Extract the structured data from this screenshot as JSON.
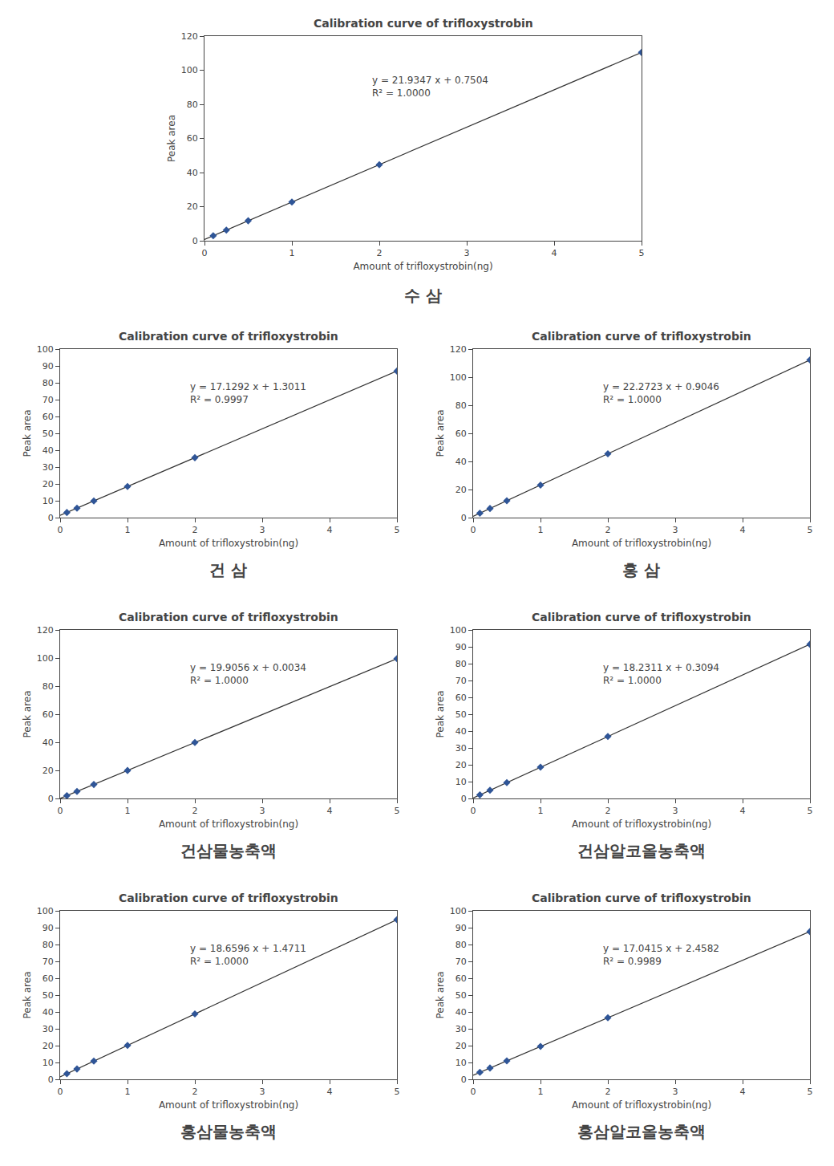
{
  "chart_data": [
    {
      "type": "scatter",
      "title": "Calibration curve of trifloxystrobin",
      "xlabel": "Amount of trifloxystrobin(ng)",
      "ylabel": "Peak area",
      "caption": "수 삼",
      "annotations": [
        "y = 21.9347 x + 0.7504\nR² = 1.0000"
      ],
      "series": [
        {
          "type": "line",
          "x": [
            0,
            5
          ],
          "values": [
            0.7504,
            110.4239
          ],
          "color": "#333333",
          "line_style": "solid"
        },
        {
          "type": "scatter",
          "x": [
            0.1,
            0.25,
            0.5,
            1.0,
            2.0,
            5.0
          ],
          "values": [
            2.94387,
            6.234075,
            11.71775,
            22.6851,
            44.6198,
            110.4239
          ],
          "color": "#2F5597",
          "marker": "diamond"
        }
      ],
      "xlim": [
        0,
        5
      ],
      "xticks": [
        0,
        1,
        2,
        3,
        4,
        5
      ],
      "ylim": [
        0,
        120
      ],
      "yticks": [
        0,
        20,
        40,
        60,
        80,
        100,
        120
      ],
      "grid": false
    },
    {
      "type": "scatter",
      "title": "Calibration curve of trifloxystrobin",
      "xlabel": "Amount of trifloxystrobin(ng)",
      "ylabel": "Peak area",
      "caption": "건 삼",
      "annotations": [
        "y = 17.1292 x + 1.3011\nR² = 0.9997"
      ],
      "series": [
        {
          "type": "line",
          "x": [
            0,
            5
          ],
          "values": [
            1.3011,
            86.9471
          ],
          "color": "#333333",
          "line_style": "solid"
        },
        {
          "type": "scatter",
          "x": [
            0.1,
            0.25,
            0.5,
            1.0,
            2.0,
            5.0
          ],
          "values": [
            3.01402,
            5.5834,
            9.8657,
            18.4303,
            35.5595,
            86.9471
          ],
          "color": "#2F5597",
          "marker": "diamond"
        }
      ],
      "xlim": [
        0,
        5
      ],
      "xticks": [
        0,
        1,
        2,
        3,
        4,
        5
      ],
      "ylim": [
        0,
        100
      ],
      "yticks": [
        0,
        10,
        20,
        30,
        40,
        50,
        60,
        70,
        80,
        90,
        100
      ],
      "grid": false
    },
    {
      "type": "scatter",
      "title": "Calibration curve of trifloxystrobin",
      "xlabel": "Amount of trifloxystrobin(ng)",
      "ylabel": "Peak area",
      "caption": "홍 삼",
      "annotations": [
        "y = 22.2723 x + 0.9046\nR² = 1.0000"
      ],
      "series": [
        {
          "type": "line",
          "x": [
            0,
            5
          ],
          "values": [
            0.9046,
            112.2661
          ],
          "color": "#333333",
          "line_style": "solid"
        },
        {
          "type": "scatter",
          "x": [
            0.1,
            0.25,
            0.5,
            1.0,
            2.0,
            5.0
          ],
          "values": [
            3.13183,
            6.472675,
            12.04075,
            23.1769,
            45.4492,
            112.2661
          ],
          "color": "#2F5597",
          "marker": "diamond"
        }
      ],
      "xlim": [
        0,
        5
      ],
      "xticks": [
        0,
        1,
        2,
        3,
        4,
        5
      ],
      "ylim": [
        0,
        120
      ],
      "yticks": [
        0,
        20,
        40,
        60,
        80,
        100,
        120
      ],
      "grid": false
    },
    {
      "type": "scatter",
      "title": "Calibration curve of trifloxystrobin",
      "xlabel": "Amount of trifloxystrobin(ng)",
      "ylabel": "Peak area",
      "caption": "건삼물농축액",
      "annotations": [
        "y = 19.9056 x + 0.0034\nR² = 1.0000"
      ],
      "series": [
        {
          "type": "line",
          "x": [
            0,
            5
          ],
          "values": [
            0.0034,
            99.5314
          ],
          "color": "#333333",
          "line_style": "solid"
        },
        {
          "type": "scatter",
          "x": [
            0.1,
            0.25,
            0.5,
            1.0,
            2.0,
            5.0
          ],
          "values": [
            1.99396,
            4.9798,
            9.9562,
            19.909,
            39.8146,
            99.5314
          ],
          "color": "#2F5597",
          "marker": "diamond"
        }
      ],
      "xlim": [
        0,
        5
      ],
      "xticks": [
        0,
        1,
        2,
        3,
        4,
        5
      ],
      "ylim": [
        0,
        120
      ],
      "yticks": [
        0,
        20,
        40,
        60,
        80,
        100,
        120
      ],
      "grid": false
    },
    {
      "type": "scatter",
      "title": "Calibration curve of trifloxystrobin",
      "xlabel": "Amount of trifloxystrobin(ng)",
      "ylabel": "Peak area",
      "caption": "건삼알코올농축액",
      "annotations": [
        "y = 18.2311 x + 0.3094\nR² = 1.0000"
      ],
      "series": [
        {
          "type": "line",
          "x": [
            0,
            5
          ],
          "values": [
            0.3094,
            91.4649
          ],
          "color": "#333333",
          "line_style": "solid"
        },
        {
          "type": "scatter",
          "x": [
            0.1,
            0.25,
            0.5,
            1.0,
            2.0,
            5.0
          ],
          "values": [
            2.13251,
            4.867175,
            9.42495,
            18.5405,
            36.7716,
            91.4649
          ],
          "color": "#2F5597",
          "marker": "diamond"
        }
      ],
      "xlim": [
        0,
        5
      ],
      "xticks": [
        0,
        1,
        2,
        3,
        4,
        5
      ],
      "ylim": [
        0,
        100
      ],
      "yticks": [
        0,
        10,
        20,
        30,
        40,
        50,
        60,
        70,
        80,
        90,
        100
      ],
      "grid": false
    },
    {
      "type": "scatter",
      "title": "Calibration curve of trifloxystrobin",
      "xlabel": "Amount of trifloxystrobin(ng)",
      "ylabel": "Peak area",
      "caption": "홍삼물농축액",
      "annotations": [
        "y = 18.6596 x + 1.4711\nR² = 1.0000"
      ],
      "series": [
        {
          "type": "line",
          "x": [
            0,
            5
          ],
          "values": [
            1.4711,
            94.7691
          ],
          "color": "#333333",
          "line_style": "solid"
        },
        {
          "type": "scatter",
          "x": [
            0.1,
            0.25,
            0.5,
            1.0,
            2.0,
            5.0
          ],
          "values": [
            3.33706,
            6.136,
            10.8009,
            20.1307,
            38.7903,
            94.7691
          ],
          "color": "#2F5597",
          "marker": "diamond"
        }
      ],
      "xlim": [
        0,
        5
      ],
      "xticks": [
        0,
        1,
        2,
        3,
        4,
        5
      ],
      "ylim": [
        0,
        100
      ],
      "yticks": [
        0,
        10,
        20,
        30,
        40,
        50,
        60,
        70,
        80,
        90,
        100
      ],
      "grid": false
    },
    {
      "type": "scatter",
      "title": "Calibration curve of trifloxystrobin",
      "xlabel": "Amount of trifloxystrobin(ng)",
      "ylabel": "Peak area",
      "caption": "홍삼알코올농축액",
      "annotations": [
        "y = 17.0415 x + 2.4582\nR² = 0.9989"
      ],
      "series": [
        {
          "type": "line",
          "x": [
            0,
            5
          ],
          "values": [
            2.4582,
            87.6657
          ],
          "color": "#333333",
          "line_style": "solid"
        },
        {
          "type": "scatter",
          "x": [
            0.1,
            0.25,
            0.5,
            1.0,
            2.0,
            5.0
          ],
          "values": [
            4.16235,
            6.718575,
            10.97895,
            19.4997,
            36.5412,
            87.6657
          ],
          "color": "#2F5597",
          "marker": "diamond"
        }
      ],
      "xlim": [
        0,
        5
      ],
      "xticks": [
        0,
        1,
        2,
        3,
        4,
        5
      ],
      "ylim": [
        0,
        100
      ],
      "yticks": [
        0,
        10,
        20,
        30,
        40,
        50,
        60,
        70,
        80,
        90,
        100
      ],
      "grid": false
    }
  ]
}
